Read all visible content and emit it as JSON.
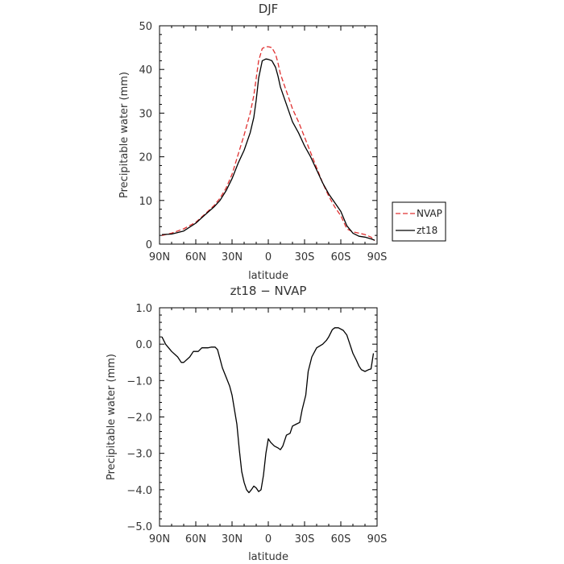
{
  "chart_data": [
    {
      "type": "line",
      "title": "DJF",
      "xlabel": "latitude",
      "ylabel": "Precipitable water (mm)",
      "xlim": [
        -90,
        90
      ],
      "ylim": [
        0,
        50
      ],
      "x_ticks": [
        -90,
        -60,
        -30,
        0,
        30,
        60,
        90
      ],
      "x_tick_labels": [
        "90N",
        "60N",
        "30N",
        "0",
        "30S",
        "60S",
        "90S"
      ],
      "y_ticks": [
        0,
        10,
        20,
        30,
        40,
        50
      ],
      "y_tick_labels": [
        "0",
        "10",
        "20",
        "30",
        "40",
        "50"
      ],
      "legend_position": "right",
      "series": [
        {
          "name": "NVAP",
          "color": "#e03030",
          "dash": "dashed",
          "x": [
            -88,
            -80,
            -70,
            -60,
            -52,
            -45,
            -40,
            -35,
            -30,
            -25,
            -20,
            -15,
            -12,
            -10,
            -8,
            -5,
            -2,
            0,
            3,
            6,
            8,
            10,
            15,
            20,
            25,
            30,
            35,
            40,
            45,
            50,
            55,
            60,
            65,
            70,
            75,
            80,
            85,
            88
          ],
          "y": [
            2.0,
            2.5,
            3.5,
            5.0,
            7.0,
            8.8,
            10.5,
            12.8,
            16.0,
            20.5,
            25.0,
            30.0,
            34.0,
            38.0,
            42.0,
            44.8,
            45.2,
            45.2,
            45.0,
            43.5,
            41.5,
            39.0,
            35.0,
            31.0,
            28.0,
            24.5,
            21.0,
            17.5,
            14.0,
            11.0,
            8.5,
            6.5,
            3.5,
            2.8,
            2.5,
            2.2,
            1.6,
            0.8
          ]
        },
        {
          "name": "zt18",
          "color": "#000000",
          "dash": "solid",
          "x": [
            -88,
            -80,
            -70,
            -60,
            -52,
            -45,
            -40,
            -35,
            -30,
            -25,
            -20,
            -15,
            -12,
            -10,
            -8,
            -5,
            -2,
            0,
            3,
            6,
            8,
            10,
            15,
            20,
            25,
            30,
            35,
            40,
            45,
            50,
            55,
            60,
            65,
            70,
            75,
            80,
            85,
            88
          ],
          "y": [
            2.2,
            2.3,
            3.0,
            4.8,
            6.8,
            8.5,
            10.0,
            12.2,
            15.0,
            18.5,
            21.5,
            25.5,
            29.0,
            33.0,
            38.0,
            42.0,
            42.4,
            42.3,
            42.0,
            40.5,
            38.5,
            36.0,
            32.0,
            28.0,
            25.5,
            22.5,
            20.0,
            17.0,
            14.0,
            11.5,
            9.5,
            7.5,
            4.2,
            2.5,
            1.8,
            1.6,
            1.2,
            0.9
          ]
        }
      ]
    },
    {
      "type": "line",
      "title": "zt18 − NVAP",
      "xlabel": "latitude",
      "ylabel": "Precipitable water (mm)",
      "xlim": [
        -90,
        90
      ],
      "ylim": [
        -5,
        1
      ],
      "x_ticks": [
        -90,
        -60,
        -30,
        0,
        30,
        60,
        90
      ],
      "x_tick_labels": [
        "90N",
        "60N",
        "30N",
        "0",
        "30S",
        "60S",
        "90S"
      ],
      "y_ticks": [
        -5,
        -4,
        -3,
        -2,
        -1,
        0,
        1
      ],
      "y_tick_labels": [
        "−5.0",
        "−4.0",
        "−3.0",
        "−2.0",
        "−1.0",
        "0.0",
        "1.0"
      ],
      "series": [
        {
          "color": "#000000",
          "dash": "solid",
          "x": [
            -88,
            -85,
            -80,
            -75,
            -72,
            -70,
            -65,
            -62,
            -58,
            -55,
            -50,
            -47,
            -44,
            -42,
            -40,
            -38,
            -35,
            -32,
            -30,
            -28,
            -26,
            -24,
            -22,
            -20,
            -18,
            -16,
            -14,
            -12,
            -10,
            -8,
            -6,
            -4,
            -2,
            0,
            2,
            5,
            8,
            10,
            12,
            15,
            18,
            20,
            23,
            26,
            28,
            31,
            33,
            36,
            40,
            45,
            48,
            50,
            53,
            55,
            58,
            62,
            65,
            67,
            70,
            73,
            75,
            77,
            80,
            83,
            85,
            87
          ],
          "y": [
            0.2,
            0.0,
            -0.2,
            -0.35,
            -0.5,
            -0.5,
            -0.35,
            -0.2,
            -0.2,
            -0.1,
            -0.1,
            -0.08,
            -0.08,
            -0.15,
            -0.4,
            -0.65,
            -0.9,
            -1.15,
            -1.4,
            -1.8,
            -2.2,
            -2.9,
            -3.5,
            -3.8,
            -4.0,
            -4.08,
            -4.0,
            -3.9,
            -3.95,
            -4.05,
            -4.0,
            -3.6,
            -3.0,
            -2.6,
            -2.7,
            -2.8,
            -2.85,
            -2.9,
            -2.8,
            -2.5,
            -2.45,
            -2.25,
            -2.2,
            -2.15,
            -1.8,
            -1.4,
            -0.75,
            -0.35,
            -0.1,
            0.0,
            0.1,
            0.2,
            0.4,
            0.45,
            0.45,
            0.38,
            0.25,
            0.05,
            -0.25,
            -0.45,
            -0.6,
            -0.7,
            -0.75,
            -0.7,
            -0.68,
            -0.25
          ]
        }
      ]
    }
  ]
}
